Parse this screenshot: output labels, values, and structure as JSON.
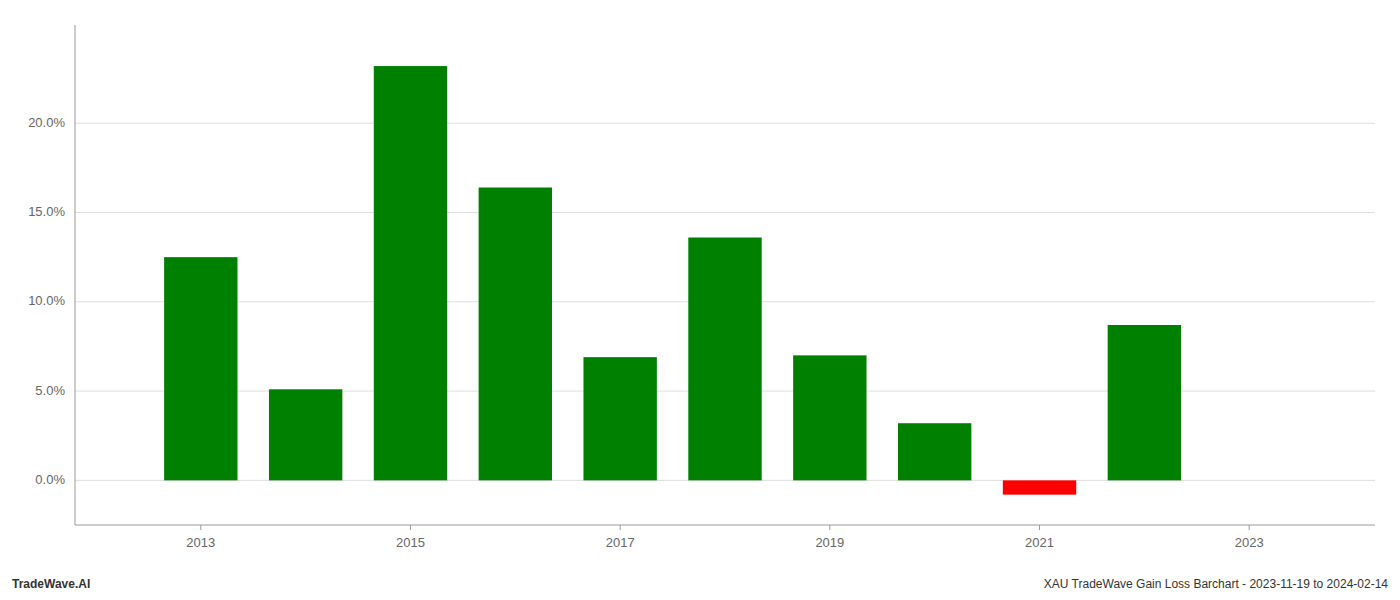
{
  "chart_data": {
    "type": "bar",
    "x": [
      2013,
      2014,
      2015,
      2016,
      2017,
      2018,
      2019,
      2020,
      2021,
      2022
    ],
    "values": [
      0.125,
      0.051,
      0.232,
      0.164,
      0.069,
      0.136,
      0.07,
      0.032,
      -0.008,
      0.087
    ],
    "colors": [
      "#008000",
      "#008000",
      "#008000",
      "#008000",
      "#008000",
      "#008000",
      "#008000",
      "#008000",
      "#ff0000",
      "#008000"
    ],
    "xlim": [
      2011.8,
      2024.2
    ],
    "xticks": [
      2013,
      2015,
      2017,
      2019,
      2021,
      2023
    ],
    "ylim": [
      -0.025,
      0.255
    ],
    "yticks": [
      {
        "value": 0.0,
        "label": "0.0%"
      },
      {
        "value": 0.05,
        "label": "5.0%"
      },
      {
        "value": 0.1,
        "label": "10.0%"
      },
      {
        "value": 0.15,
        "label": "15.0%"
      },
      {
        "value": 0.2,
        "label": "20.0%"
      }
    ],
    "grid": true,
    "annotations": [
      "TradeWave.AI",
      "XAU TradeWave Gain Loss Barchart - 2023-11-19 to 2024-02-14"
    ]
  }
}
